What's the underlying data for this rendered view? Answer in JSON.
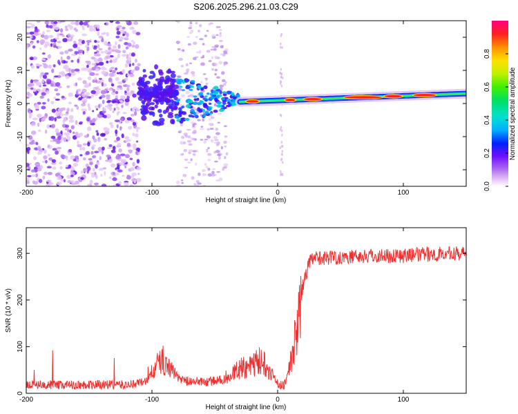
{
  "title": "S206.2025.296.21.03.C29",
  "chart_data": [
    {
      "type": "heatmap",
      "name": "spectrogram",
      "xlabel": "Height of straight line (km)",
      "ylabel": "Frequency (Hz)",
      "xlim": [
        -200,
        150
      ],
      "ylim": [
        -25,
        25
      ],
      "xticks": [
        -200,
        -100,
        0,
        100
      ],
      "yticks": [
        -20,
        -10,
        0,
        10,
        20
      ],
      "colorbar": {
        "label": "Normalized spectral amplitude",
        "range": [
          0,
          1
        ],
        "ticks": [
          0.0,
          0.2,
          0.4,
          0.6,
          0.8
        ]
      },
      "features": [
        {
          "region": "noise",
          "x_range": [
            -200,
            -110
          ],
          "freq_range": [
            -25,
            25
          ],
          "amplitude": 0.1
        },
        {
          "region": "burst",
          "x_range": [
            -110,
            -80
          ],
          "freq_center": 3,
          "freq_halfwidth": 10,
          "amplitude": 0.2
        },
        {
          "region": "signal-line",
          "x_range": [
            -30,
            150
          ],
          "freq_start": 0.5,
          "freq_end": 3,
          "amplitude": 0.9
        }
      ]
    },
    {
      "type": "line",
      "name": "snr",
      "xlabel": "Height of straight line (km)",
      "ylabel": "SNR (10 * v/v)",
      "xlim": [
        -200,
        150
      ],
      "ylim": [
        0,
        355
      ],
      "xticks": [
        -200,
        -100,
        0,
        100
      ],
      "yticks": [
        0,
        100,
        200,
        300
      ],
      "color": "#f03030",
      "series": [
        {
          "name": "SNR",
          "x": [
            -200,
            -150,
            -120,
            -105,
            -97,
            -92,
            -85,
            -78,
            -70,
            -55,
            -40,
            -30,
            -20,
            -15,
            -10,
            -5,
            0,
            5,
            10,
            15,
            20,
            25,
            30,
            50,
            80,
            100,
            120,
            150
          ],
          "y": [
            18,
            18,
            18,
            25,
            55,
            75,
            50,
            30,
            25,
            25,
            30,
            55,
            60,
            70,
            65,
            45,
            20,
            15,
            60,
            130,
            230,
            280,
            290,
            292,
            295,
            295,
            298,
            300
          ]
        }
      ]
    }
  ]
}
